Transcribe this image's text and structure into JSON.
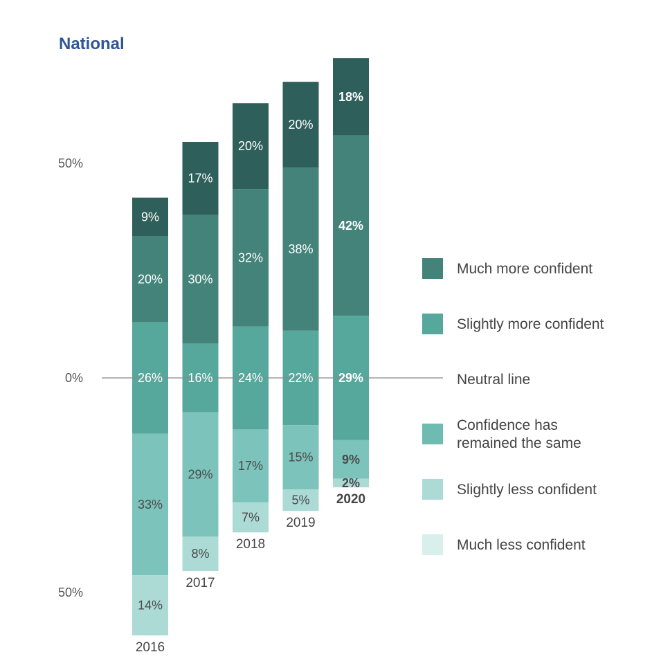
{
  "chart_data": {
    "type": "bar",
    "title": "National",
    "stacked": "diverging",
    "categories": [
      "2016",
      "2017",
      "2018",
      "2019",
      "2020"
    ],
    "highlight_category": "2020",
    "y_tick_labels": [
      {
        "value": 50,
        "label": "50%"
      },
      {
        "value": 0,
        "label": "0%"
      },
      {
        "value": -50,
        "label": "50%"
      }
    ],
    "ylim": [
      -54,
      69
    ],
    "grid": false,
    "legend_position": "right",
    "neutral_line": {
      "label": "Neutral line",
      "color": "#888888"
    },
    "series": [
      {
        "name": "Much more confident",
        "values": [
          9,
          17,
          20,
          20,
          18
        ],
        "side": "positive",
        "color": "#2e5f5a",
        "label_color": "#ffffff"
      },
      {
        "name": "Slightly more confident",
        "values": [
          20,
          30,
          32,
          38,
          42
        ],
        "side": "positive",
        "color": "#43837a",
        "label_color": "#ffffff"
      },
      {
        "name": "Confidence has remained the same",
        "values": [
          26,
          16,
          24,
          22,
          29
        ],
        "side": "centered",
        "color": "#56a89d",
        "label_color": "#ffffff"
      },
      {
        "name": "Slightly less confident",
        "values": [
          33,
          29,
          17,
          15,
          9
        ],
        "side": "negative",
        "color": "#7cc3bb",
        "label_color": "#4a4a4a"
      },
      {
        "name": "Much less confident",
        "values": [
          14,
          8,
          7,
          5,
          2
        ],
        "side": "negative",
        "color": "#acdbd6",
        "label_color": "#4a4a4a"
      }
    ],
    "legend": [
      {
        "label": "Much more confident",
        "color": "#43837a",
        "lines": [
          "Much more confident"
        ]
      },
      {
        "label": "Slightly more confident",
        "color": "#56a89d",
        "lines": [
          "Slightly more confident"
        ]
      },
      {
        "label": "Neutral line",
        "color": null,
        "lines": [
          "Neutral line"
        ]
      },
      {
        "label": "Confidence has remained the same",
        "color": "#6ebbb2",
        "lines": [
          "Confidence has",
          "remained the same"
        ]
      },
      {
        "label": "Slightly less confident",
        "color": "#acdbd6",
        "lines": [
          "Slightly less confident"
        ]
      },
      {
        "label": "Much less confident",
        "color": "#d8efec",
        "lines": [
          "Much less confident"
        ]
      }
    ]
  }
}
